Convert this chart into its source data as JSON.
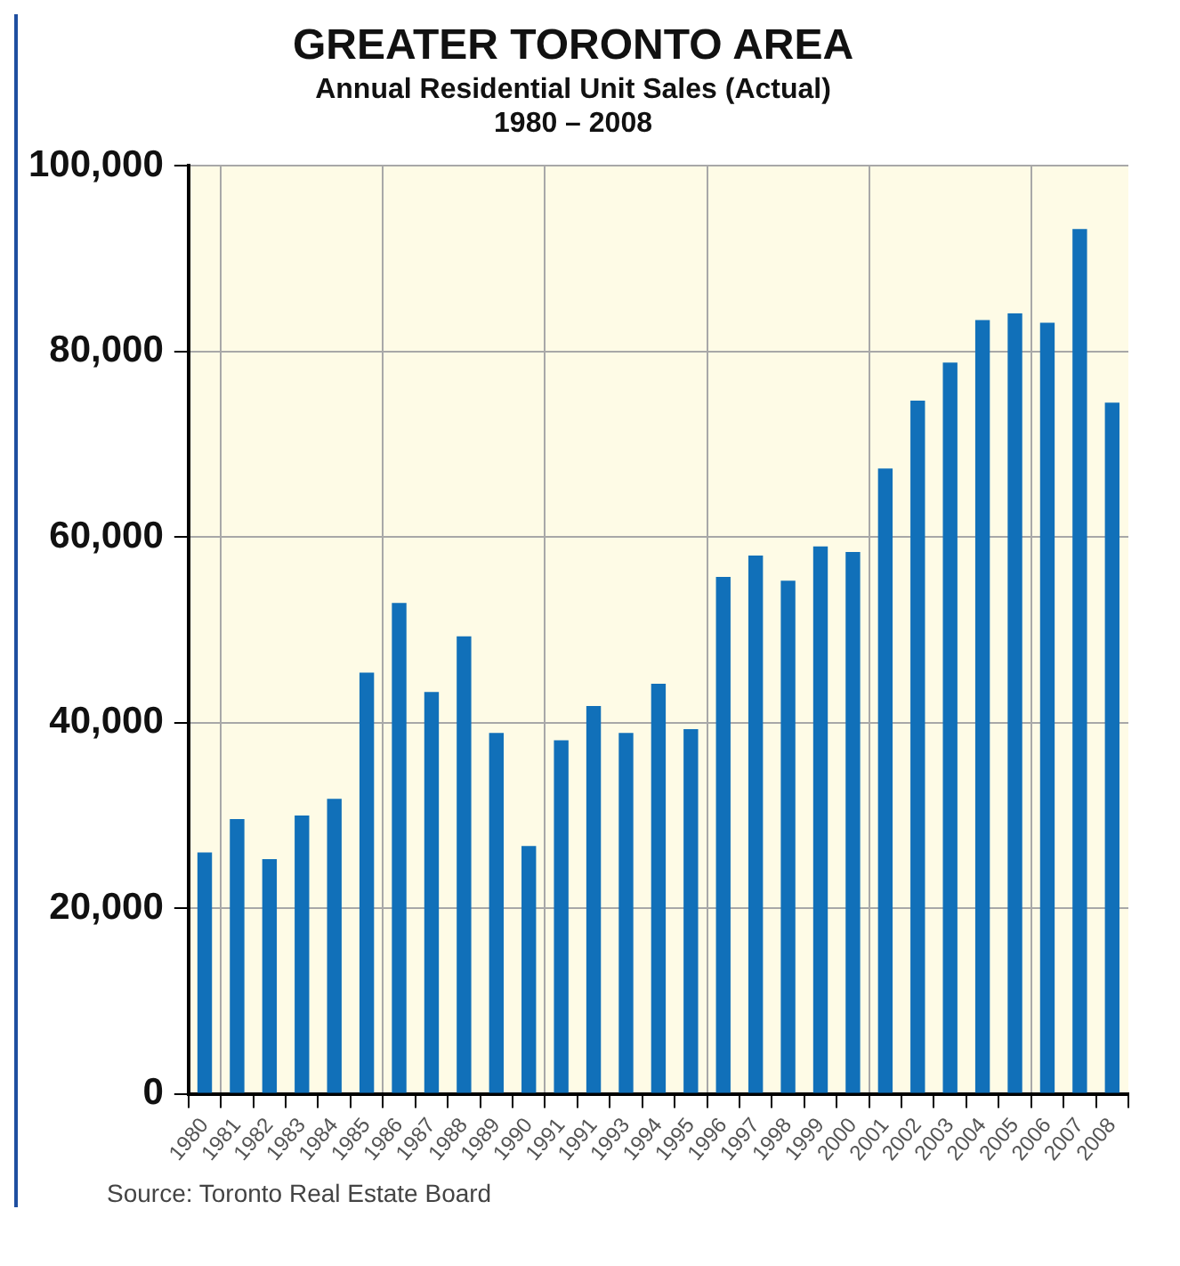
{
  "chart_data": {
    "type": "bar",
    "title": "GREATER TORONTO AREA",
    "subtitle": "Annual Residential Unit Sales (Actual)\n1980 – 2008",
    "categories": [
      "1980",
      "1981",
      "1982",
      "1983",
      "1984",
      "1985",
      "1986",
      "1987",
      "1988",
      "1989",
      "1990",
      "1991",
      "1991",
      "1993",
      "1994",
      "1995",
      "1996",
      "1997",
      "1998",
      "1999",
      "2000",
      "2001",
      "2002",
      "2003",
      "2004",
      "2005",
      "2006",
      "2007",
      "2008"
    ],
    "values": [
      26000,
      29600,
      25300,
      30000,
      31800,
      45400,
      52900,
      43300,
      49300,
      38900,
      26700,
      38100,
      41800,
      38900,
      44200,
      39300,
      55700,
      58000,
      55300,
      59000,
      58400,
      67400,
      74700,
      78800,
      83400,
      84100,
      83100,
      93200,
      74500
    ],
    "color": "#1170b9",
    "ylim": [
      0,
      100000
    ],
    "yticks": [
      {
        "value": 0,
        "label": "0"
      },
      {
        "value": 20000,
        "label": "20,000"
      },
      {
        "value": 40000,
        "label": "40,000"
      },
      {
        "value": 60000,
        "label": "60,000"
      },
      {
        "value": 80000,
        "label": "80,000"
      },
      {
        "value": 100000,
        "label": "100,000"
      }
    ],
    "grid": true,
    "annotations": [
      "Source: Toronto Real Estate Board"
    ]
  }
}
